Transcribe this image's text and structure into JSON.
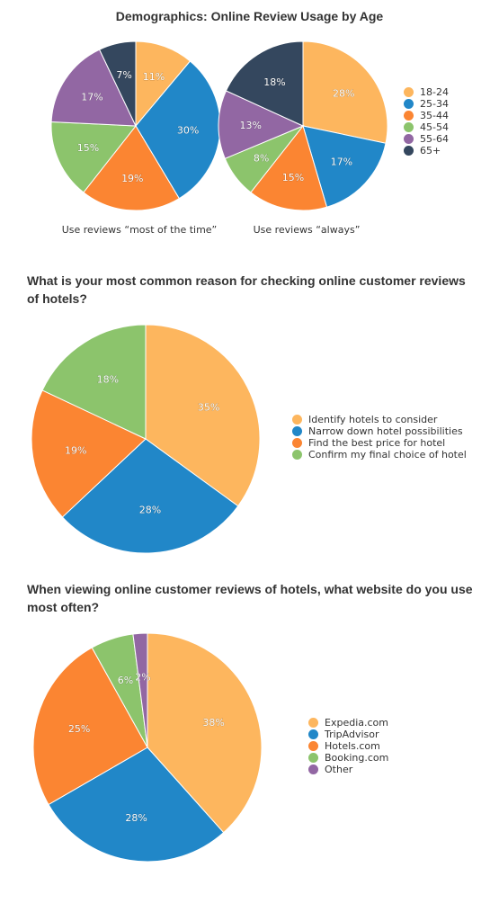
{
  "colors": {
    "yellow": "#FDB65E",
    "blue": "#2187C8",
    "orange": "#FB8532",
    "green": "#8CC46C",
    "purple": "#9267A3",
    "navy": "#34475E"
  },
  "chart_data": [
    {
      "type": "pie",
      "title": "Demographics: Online Review Usage by Age",
      "caption": "Use reviews “most of the time”",
      "categories": [
        "18-24",
        "25-34",
        "35-44",
        "45-54",
        "55-64",
        "65+"
      ],
      "values": [
        11,
        30,
        19,
        15,
        17,
        7
      ],
      "labels": [
        "11%",
        "30%",
        "19%",
        "15%",
        "17%",
        "7%"
      ],
      "colors": [
        "#FDB65E",
        "#2187C8",
        "#FB8532",
        "#8CC46C",
        "#9267A3",
        "#34475E"
      ]
    },
    {
      "type": "pie",
      "title": "",
      "caption": "Use reviews “always”",
      "categories": [
        "18-24",
        "25-34",
        "35-44",
        "45-54",
        "55-64",
        "65+"
      ],
      "values": [
        28,
        17,
        15,
        8,
        13,
        18
      ],
      "labels": [
        "28%",
        "17%",
        "15%",
        "8%",
        "13%",
        "18%"
      ],
      "colors": [
        "#FDB65E",
        "#2187C8",
        "#FB8532",
        "#8CC46C",
        "#9267A3",
        "#34475E"
      ],
      "legend": [
        "18-24",
        "25-34",
        "35-44",
        "45-54",
        "55-64",
        "65+"
      ]
    },
    {
      "type": "pie",
      "title": "What is your most common reason for checking online customer reviews of hotels?",
      "categories": [
        "Identify hotels to consider",
        "Narrow down hotel possibilities",
        "Find the best price for hotel",
        "Confirm my final choice of hotel"
      ],
      "values": [
        35,
        28,
        19,
        18
      ],
      "labels": [
        "35%",
        "28%",
        "19%",
        "18%"
      ],
      "colors": [
        "#FDB65E",
        "#2187C8",
        "#FB8532",
        "#8CC46C"
      ],
      "legend": [
        "Identify hotels to consider",
        "Narrow down hotel possibilities",
        "Find the best price for hotel",
        "Confirm my final choice of hotel"
      ]
    },
    {
      "type": "pie",
      "title": "When viewing online customer reviews of hotels, what website do you use most often?",
      "categories": [
        "Expedia.com",
        "TripAdvisor",
        "Hotels.com",
        "Booking.com",
        "Other"
      ],
      "values": [
        38,
        28,
        25,
        6,
        2
      ],
      "labels": [
        "38%",
        "28%",
        "25%",
        "6%",
        "2%"
      ],
      "colors": [
        "#FDB65E",
        "#2187C8",
        "#FB8532",
        "#8CC46C",
        "#9267A3"
      ],
      "legend": [
        "Expedia.com",
        "TripAdvisor",
        "Hotels.com",
        "Booking.com",
        "Other"
      ]
    }
  ]
}
